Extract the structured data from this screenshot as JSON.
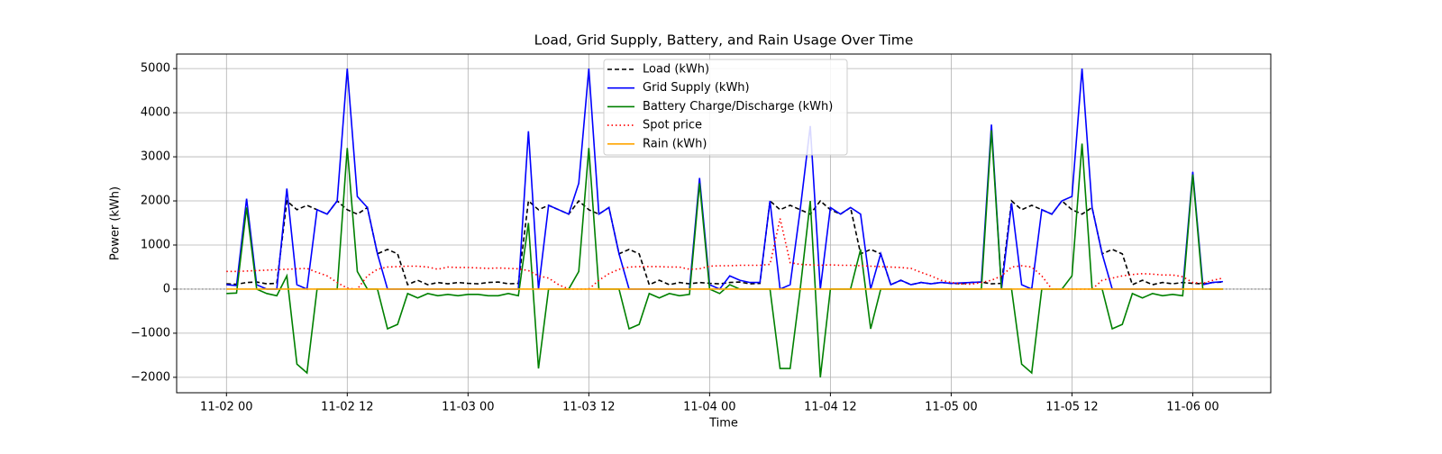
{
  "chart_data": {
    "type": "line",
    "title": "Load, Grid Supply, Battery, and Rain Usage Over Time",
    "xlabel": "Time",
    "ylabel": "Power (kWh)",
    "x": [
      0,
      1,
      2,
      3,
      4,
      5,
      6,
      7,
      8,
      9,
      10,
      11,
      12,
      13,
      14,
      15,
      16,
      17,
      18,
      19,
      20,
      21,
      22,
      23,
      24,
      25,
      26,
      27,
      28,
      29,
      30,
      31,
      32,
      33,
      34,
      35,
      36,
      37,
      38,
      39,
      40,
      41,
      42,
      43,
      44,
      45,
      46,
      47,
      48,
      49,
      50,
      51,
      52,
      53,
      54,
      55,
      56,
      57,
      58,
      59,
      60,
      61,
      62,
      63,
      64,
      65,
      66,
      67,
      68,
      69,
      70,
      71,
      72,
      73,
      74,
      75,
      76,
      77,
      78,
      79,
      80,
      81,
      82,
      83,
      84,
      85,
      86,
      87,
      88,
      89,
      90,
      91,
      92,
      93,
      94,
      95,
      96,
      97,
      98,
      99
    ],
    "series": [
      {
        "name": "Load (kWh)",
        "color": "#000000",
        "linestyle": "dashed",
        "values": [
          120,
          110,
          150,
          160,
          120,
          130,
          2000,
          1800,
          1900,
          1800,
          1700,
          2000,
          1800,
          1700,
          1850,
          800,
          900,
          800,
          100,
          200,
          100,
          150,
          120,
          150,
          130,
          120,
          150,
          160,
          120,
          130,
          2000,
          1800,
          1900,
          1800,
          1700,
          2000,
          1800,
          1700,
          1850,
          800,
          900,
          800,
          100,
          200,
          100,
          150,
          120,
          150,
          130,
          120,
          150,
          160,
          120,
          130,
          2000,
          1800,
          1900,
          1800,
          1700,
          2000,
          1800,
          1700,
          1850,
          800,
          900,
          800,
          100,
          200,
          100,
          150,
          120,
          150,
          130,
          120,
          150,
          160,
          120,
          130,
          2000,
          1800,
          1900,
          1800,
          1700,
          2000,
          1800,
          1700,
          1850,
          800,
          900,
          800,
          100,
          200,
          100,
          150,
          120,
          150,
          130,
          120,
          150,
          160
        ]
      },
      {
        "name": "Grid Supply (kWh)",
        "color": "#0000ff",
        "linestyle": "solid",
        "values": [
          100,
          80,
          2050,
          100,
          0,
          0,
          2280,
          100,
          0,
          1800,
          1700,
          2000,
          5000,
          2100,
          1850,
          800,
          0,
          0,
          0,
          0,
          0,
          0,
          0,
          0,
          0,
          0,
          0,
          0,
          0,
          0,
          3580,
          0,
          1900,
          1800,
          1700,
          2400,
          5000,
          1700,
          1850,
          800,
          0,
          0,
          0,
          0,
          0,
          0,
          0,
          2520,
          100,
          0,
          300,
          200,
          150,
          150,
          2000,
          0,
          100,
          1800,
          3700,
          0,
          1850,
          1700,
          1850,
          1700,
          0,
          800,
          100,
          200,
          100,
          150,
          120,
          150,
          130,
          140,
          150,
          160,
          3730,
          0,
          1950,
          100,
          0,
          1800,
          1700,
          2000,
          2100,
          5000,
          1850,
          800,
          0,
          0,
          0,
          0,
          0,
          0,
          0,
          0,
          2660,
          100,
          150,
          170
        ]
      },
      {
        "name": "Battery Charge/Discharge (kWh)",
        "color": "#008000",
        "linestyle": "solid",
        "values": [
          -100,
          -90,
          1850,
          0,
          -100,
          -150,
          300,
          -1700,
          -1900,
          0,
          0,
          0,
          3200,
          400,
          0,
          0,
          -900,
          -800,
          -100,
          -200,
          -100,
          -150,
          -120,
          -150,
          -120,
          -120,
          -150,
          -150,
          -100,
          -150,
          1500,
          -1800,
          0,
          0,
          0,
          400,
          3200,
          0,
          0,
          0,
          -900,
          -800,
          -100,
          -200,
          -100,
          -150,
          -120,
          2400,
          0,
          -100,
          100,
          0,
          0,
          0,
          0,
          -1800,
          -1800,
          0,
          2000,
          -2000,
          0,
          0,
          0,
          900,
          -900,
          0,
          0,
          0,
          0,
          0,
          0,
          0,
          0,
          0,
          0,
          0,
          3600,
          0,
          0,
          -1700,
          -1900,
          0,
          0,
          0,
          300,
          3300,
          0,
          0,
          -900,
          -800,
          -100,
          -200,
          -100,
          -150,
          -120,
          -150,
          2600,
          0,
          0,
          0
        ]
      },
      {
        "name": "Spot price",
        "color": "#ff0000",
        "linestyle": "dotted",
        "values": [
          400,
          400,
          410,
          420,
          430,
          440,
          450,
          460,
          470,
          380,
          300,
          150,
          20,
          0,
          300,
          450,
          500,
          510,
          520,
          520,
          500,
          450,
          500,
          490,
          490,
          480,
          470,
          480,
          470,
          460,
          420,
          300,
          250,
          100,
          0,
          0,
          0,
          200,
          350,
          450,
          500,
          510,
          510,
          510,
          500,
          500,
          450,
          460,
          520,
          530,
          530,
          540,
          540,
          540,
          560,
          1600,
          600,
          560,
          550,
          540,
          550,
          540,
          540,
          530,
          520,
          510,
          500,
          490,
          470,
          380,
          300,
          200,
          150,
          120,
          110,
          150,
          200,
          300,
          500,
          530,
          500,
          300,
          0,
          0,
          0,
          0,
          0,
          200,
          250,
          300,
          330,
          350,
          340,
          320,
          320,
          280,
          150,
          130,
          200,
          250
        ]
      },
      {
        "name": "Rain (kWh)",
        "color": "#ffa500",
        "linestyle": "solid",
        "values": [
          0,
          0,
          0,
          0,
          0,
          0,
          0,
          0,
          0,
          0,
          0,
          0,
          0,
          0,
          0,
          0,
          0,
          0,
          0,
          0,
          0,
          0,
          0,
          0,
          0,
          0,
          0,
          0,
          0,
          0,
          0,
          0,
          0,
          0,
          0,
          0,
          0,
          0,
          0,
          0,
          0,
          0,
          0,
          0,
          0,
          0,
          0,
          0,
          0,
          0,
          0,
          0,
          0,
          0,
          0,
          0,
          0,
          0,
          0,
          0,
          0,
          0,
          0,
          0,
          0,
          0,
          0,
          0,
          0,
          0,
          0,
          0,
          0,
          0,
          0,
          0,
          0,
          0,
          0,
          0,
          0,
          0,
          0,
          0,
          0,
          0,
          0,
          0,
          0,
          0,
          0,
          0,
          0,
          0,
          0,
          0,
          0,
          0,
          0,
          0
        ]
      }
    ],
    "xlim": [
      -4.95,
      103.75
    ],
    "xticks": [
      {
        "value": 0,
        "label": "11-02 00"
      },
      {
        "value": 12,
        "label": "11-02 12"
      },
      {
        "value": 24,
        "label": "11-03 00"
      },
      {
        "value": 36,
        "label": "11-03 12"
      },
      {
        "value": 48,
        "label": "11-04 00"
      },
      {
        "value": 60,
        "label": "11-04 12"
      },
      {
        "value": 72,
        "label": "11-05 00"
      },
      {
        "value": 84,
        "label": "11-05 12"
      },
      {
        "value": 96,
        "label": "11-06 00"
      }
    ],
    "ylim": [
      -2350,
      5330
    ],
    "yticks": [
      {
        "value": -2000,
        "label": "−2000"
      },
      {
        "value": -1000,
        "label": "−1000"
      },
      0,
      1000,
      2000,
      3000,
      4000,
      5000
    ],
    "grid": true,
    "legend": "upper center"
  }
}
